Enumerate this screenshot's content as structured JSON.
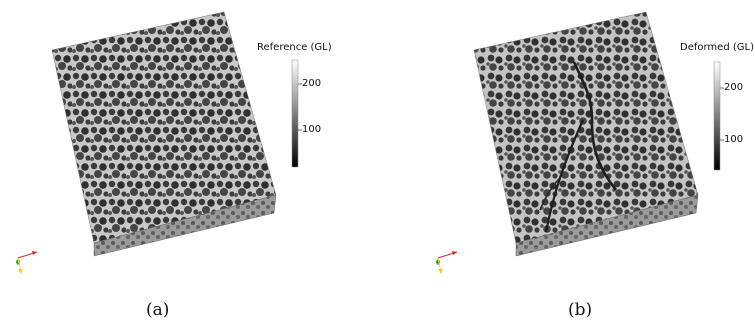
{
  "panels": [
    {
      "id": "a",
      "colorbar": {
        "title": "Reference (GL)",
        "ticks": [
          "200",
          "100"
        ]
      },
      "caption": "(a)",
      "shows_crack": false
    },
    {
      "id": "b",
      "colorbar": {
        "title": "Deformed (GL)",
        "ticks": [
          "200",
          "100"
        ]
      },
      "caption": "(b)",
      "shows_crack": true
    }
  ],
  "orientation_axes_colors": {
    "x": "#d62728",
    "y": "#2ca02c",
    "z": "#e6d23a"
  }
}
